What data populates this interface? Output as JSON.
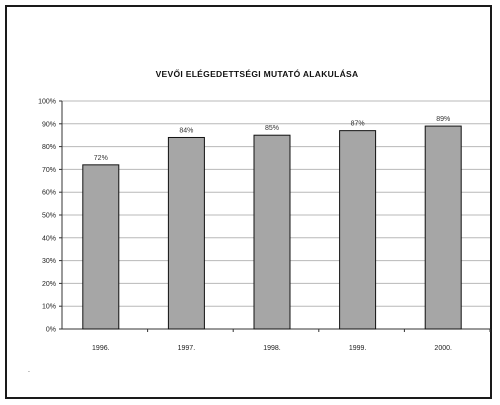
{
  "chart_data": {
    "type": "bar",
    "title": "VEVŐI ELÉGEDETTSÉGI MUTATÓ ALAKULÁSA",
    "categories": [
      "1996.",
      "1997.",
      "1998.",
      "1999.",
      "2000."
    ],
    "values": [
      72,
      84,
      85,
      87,
      89
    ],
    "data_labels": [
      "72%",
      "84%",
      "85%",
      "87%",
      "89%"
    ],
    "y_ticks": [
      "0%",
      "10%",
      "20%",
      "30%",
      "40%",
      "50%",
      "60%",
      "70%",
      "80%",
      "90%",
      "100%"
    ],
    "ylim": [
      0,
      100
    ],
    "xlabel": "",
    "ylabel": "",
    "grid": true,
    "legend": "none",
    "bar_color": "#a6a6a6",
    "bar_outline": "#111111"
  },
  "footnote": "."
}
